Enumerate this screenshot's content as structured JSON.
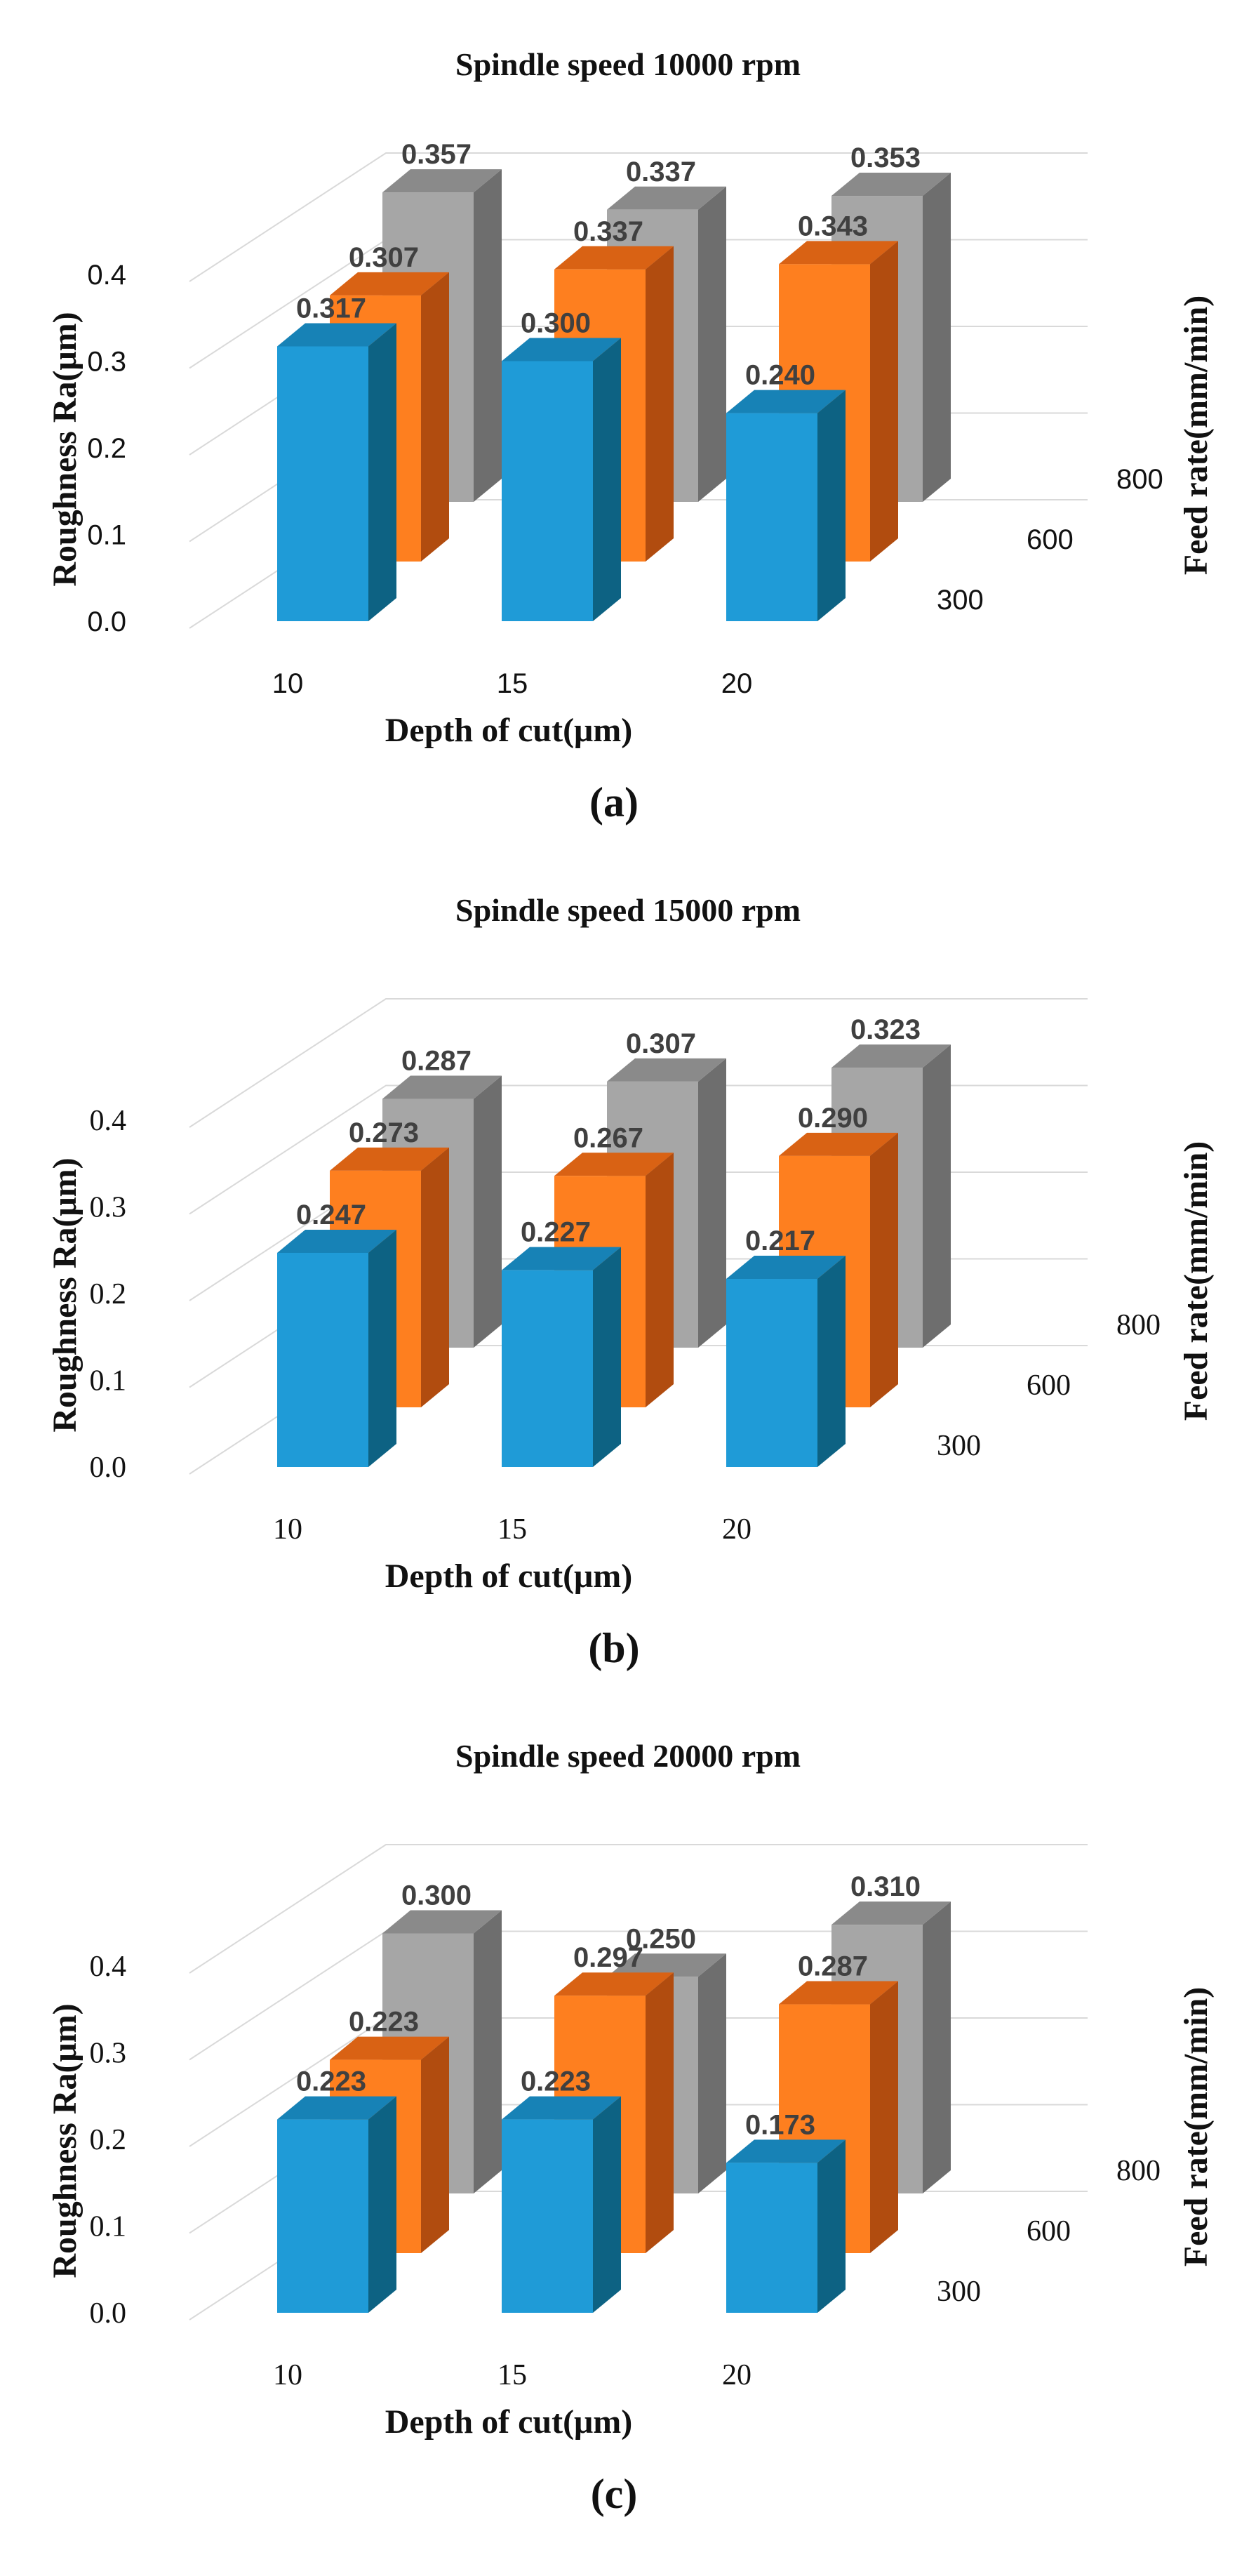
{
  "chart_data": [
    {
      "type": "bar",
      "subtype": "3d-column",
      "title": "Spindle speed 10000 rpm",
      "caption": "(a)",
      "xlabel": "Depth of cut(μm)",
      "ylabel": "Roughness Ra(μm)",
      "zlabel": "Feed rate(mm/min)",
      "categories": [
        "10",
        "15",
        "20"
      ],
      "series": [
        {
          "name": "300",
          "values": [
            0.317,
            0.3,
            0.24
          ]
        },
        {
          "name": "600",
          "values": [
            0.307,
            0.337,
            0.343
          ]
        },
        {
          "name": "800",
          "values": [
            0.357,
            0.337,
            0.353
          ]
        }
      ],
      "value_labels": [
        [
          "0.317",
          "0.300",
          "0.240"
        ],
        [
          "0.307",
          "0.337",
          "0.343"
        ],
        [
          "0.357",
          "0.337",
          "0.353"
        ]
      ],
      "y_ticks": [
        "0.0",
        "0.1",
        "0.2",
        "0.3",
        "0.4"
      ],
      "ylim": [
        0,
        0.4
      ],
      "grid": true
    },
    {
      "type": "bar",
      "subtype": "3d-column",
      "title": "Spindle speed 15000 rpm",
      "caption": "(b)",
      "xlabel": "Depth of cut(μm)",
      "ylabel": "Roughness Ra(μm)",
      "zlabel": "Feed rate(mm/min)",
      "categories": [
        "10",
        "15",
        "20"
      ],
      "series": [
        {
          "name": "300",
          "values": [
            0.247,
            0.227,
            0.217
          ]
        },
        {
          "name": "600",
          "values": [
            0.273,
            0.267,
            0.29
          ]
        },
        {
          "name": "800",
          "values": [
            0.287,
            0.307,
            0.323
          ]
        }
      ],
      "value_labels": [
        [
          "0.247",
          "0.227",
          "0.217"
        ],
        [
          "0.273",
          "0.267",
          "0.290"
        ],
        [
          "0.287",
          "0.307",
          "0.323"
        ]
      ],
      "y_ticks": [
        "0.0",
        "0.1",
        "0.2",
        "0.3",
        "0.4"
      ],
      "ylim": [
        0,
        0.4
      ],
      "grid": true
    },
    {
      "type": "bar",
      "subtype": "3d-column",
      "title": "Spindle speed 20000 rpm",
      "caption": "(c)",
      "xlabel": "Depth of cut(μm)",
      "ylabel": "Roughness Ra(μm)",
      "zlabel": "Feed rate(mm/min)",
      "categories": [
        "10",
        "15",
        "20"
      ],
      "series": [
        {
          "name": "300",
          "values": [
            0.223,
            0.223,
            0.173
          ]
        },
        {
          "name": "600",
          "values": [
            0.223,
            0.297,
            0.287
          ]
        },
        {
          "name": "800",
          "values": [
            0.3,
            0.25,
            0.31
          ]
        }
      ],
      "value_labels": [
        [
          "0.223",
          "0.223",
          "0.173"
        ],
        [
          "0.223",
          "0.297",
          "0.287"
        ],
        [
          "0.300",
          "0.250",
          "0.310"
        ]
      ],
      "y_ticks": [
        "0.0",
        "0.1",
        "0.2",
        "0.3",
        "0.4"
      ],
      "ylim": [
        0,
        0.4
      ],
      "grid": true
    }
  ],
  "colors": {
    "series_front": [
      "#1f9bd7",
      "#fe7f1f",
      "#a6a6a6"
    ],
    "series_side": [
      "#0d6283",
      "#b14c0f",
      "#6e6e6e"
    ],
    "series_top": [
      "#1782b6",
      "#d96214",
      "#8a8a8a"
    ],
    "wall": "#d9d9d9"
  }
}
